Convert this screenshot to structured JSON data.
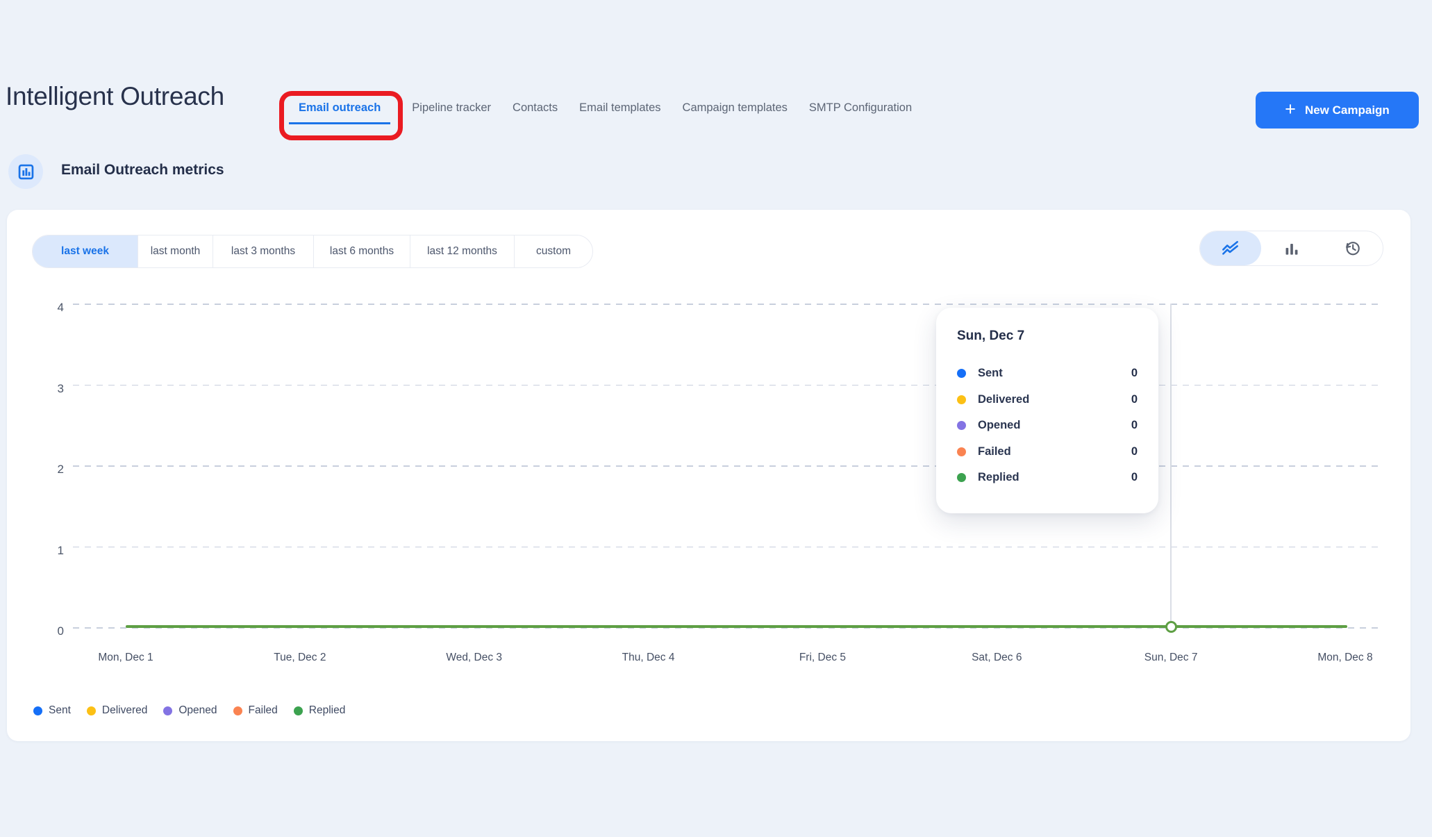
{
  "page": {
    "title": "Intelligent Outreach",
    "background": "#edf2f9"
  },
  "nav": {
    "tabs": [
      {
        "label": "Email outreach",
        "active": true
      },
      {
        "label": "Pipeline tracker",
        "active": false
      },
      {
        "label": "Contacts",
        "active": false
      },
      {
        "label": "Email templates",
        "active": false
      },
      {
        "label": "Campaign templates",
        "active": false
      },
      {
        "label": "SMTP Configuration",
        "active": false
      }
    ]
  },
  "annotation": {
    "type": "red-highlight-box",
    "target": "Email outreach tab",
    "color": "#ea1b22"
  },
  "actions": {
    "new_campaign_label": "New Campaign",
    "plus_icon": "+",
    "button_color": "#2577f7"
  },
  "section": {
    "title": "Email Outreach metrics",
    "icon": "bar-chart-icon"
  },
  "filters": {
    "options": [
      "last week",
      "last month",
      "last 3 months",
      "last 6 months",
      "last 12 months",
      "custom"
    ],
    "active": "last week",
    "active_color": "#1a73e8"
  },
  "view_toggles": {
    "options": [
      {
        "icon": "line-chart-icon",
        "active": true
      },
      {
        "icon": "bar-chart-icon",
        "active": false
      },
      {
        "icon": "history-icon",
        "active": false
      }
    ]
  },
  "chart_data": {
    "type": "line",
    "categories": [
      "Mon, Dec 1",
      "Tue, Dec 2",
      "Wed, Dec 3",
      "Thu, Dec 4",
      "Fri, Dec 5",
      "Sat, Dec 6",
      "Sun, Dec 7",
      "Mon, Dec 8"
    ],
    "series": [
      {
        "name": "Sent",
        "color": "#156ff7",
        "values": [
          0,
          0,
          0,
          0,
          0,
          0,
          0,
          0
        ]
      },
      {
        "name": "Delivered",
        "color": "#fcc015",
        "values": [
          0,
          0,
          0,
          0,
          0,
          0,
          0,
          0
        ]
      },
      {
        "name": "Opened",
        "color": "#8373e3",
        "values": [
          0,
          0,
          0,
          0,
          0,
          0,
          0,
          0
        ]
      },
      {
        "name": "Failed",
        "color": "#fa8351",
        "values": [
          0,
          0,
          0,
          0,
          0,
          0,
          0,
          0
        ]
      },
      {
        "name": "Replied",
        "color": "#3ca24f",
        "values": [
          0,
          0,
          0,
          0,
          0,
          0,
          0,
          0
        ]
      }
    ],
    "y_ticks": [
      4,
      3,
      2,
      1,
      0
    ],
    "ylim": [
      0,
      4
    ],
    "grid": "horizontal-dashed",
    "legend_position": "bottom",
    "visible_line_color": "#5e9f44",
    "highlight": {
      "category": "Sun, Dec 7",
      "category_index": 6,
      "marker": "hollow-circle"
    }
  },
  "tooltip": {
    "title": "Sun, Dec 7",
    "rows": [
      {
        "label": "Sent",
        "value": "0",
        "color": "#156ff7"
      },
      {
        "label": "Delivered",
        "value": "0",
        "color": "#fcc015"
      },
      {
        "label": "Opened",
        "value": "0",
        "color": "#8373e3"
      },
      {
        "label": "Failed",
        "value": "0",
        "color": "#fa8351"
      },
      {
        "label": "Replied",
        "value": "0",
        "color": "#3ca24f"
      }
    ]
  },
  "icons": {
    "metrics_header": "bar-chart-icon",
    "button": "plus-icon",
    "toggles": [
      "line-chart-icon",
      "bar-chart-icon",
      "history-icon"
    ],
    "chart_point": "hollow-circle-marker"
  }
}
